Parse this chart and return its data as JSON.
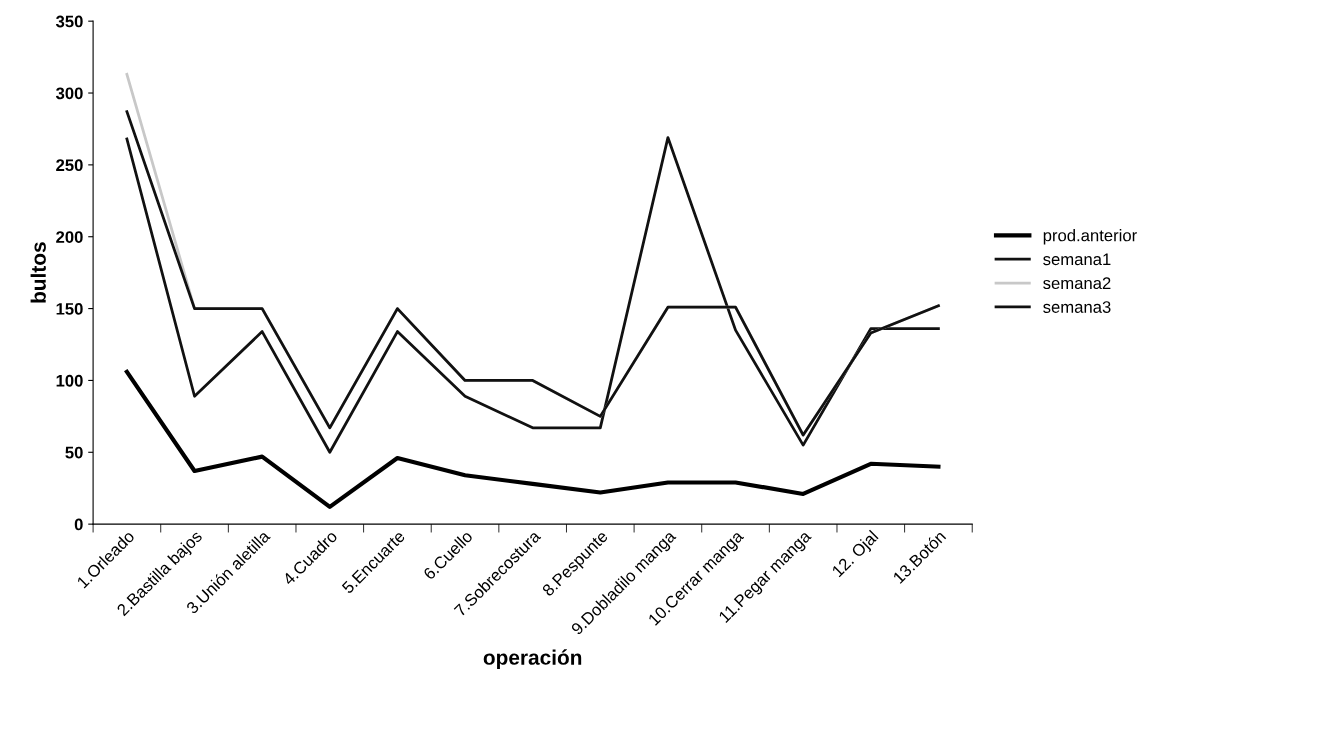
{
  "chart_data": {
    "type": "line",
    "xlabel": "operación",
    "ylabel": "bultos",
    "categories": [
      "1.Orleado",
      "2.Bastilla bajos",
      "3.Unión aletilla",
      "4.Cuadro",
      "5.Encuarte",
      "6.Cuello",
      "7.Sobrecostura",
      "8.Pespunte",
      "9.Dobladilo manga",
      "10.Cerrar manga",
      "11.Pegar manga",
      "12. Ojal",
      "13.Botón"
    ],
    "series": [
      {
        "name": "prod.anterior",
        "color": "#000000",
        "values": [
          106,
          37,
          47,
          12,
          46,
          34,
          28,
          22,
          29,
          29,
          21,
          42,
          40
        ]
      },
      {
        "name": "semana1",
        "color": "#111111",
        "values": [
          268,
          89,
          134,
          50,
          134,
          89,
          67,
          67,
          269,
          135,
          55,
          136,
          136
        ]
      },
      {
        "name": "semana2",
        "color": "#c8c8c8",
        "values": [
          313,
          150,
          150,
          67,
          150,
          100,
          100,
          75,
          151,
          151,
          62,
          133,
          152
        ]
      },
      {
        "name": "semana3",
        "color": "#111111",
        "values": [
          287,
          150,
          150,
          67,
          150,
          100,
          100,
          75,
          151,
          151,
          62,
          133,
          152
        ]
      }
    ],
    "ylim": [
      0,
      350
    ],
    "yticks": [
      0,
      50,
      100,
      150,
      200,
      250,
      300,
      350
    ],
    "grid": false,
    "legend": "right"
  }
}
